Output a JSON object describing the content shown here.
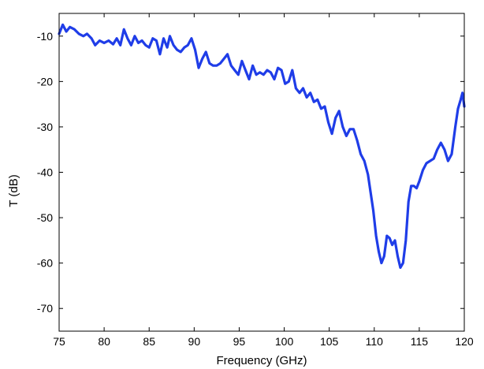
{
  "chart_data": {
    "type": "line",
    "title": "",
    "xlabel": "Frequency (GHz)",
    "ylabel": "T (dB)",
    "xlim": [
      75,
      120
    ],
    "ylim": [
      -75,
      -5
    ],
    "xticks": [
      75,
      80,
      85,
      90,
      95,
      100,
      105,
      110,
      115,
      120
    ],
    "yticks": [
      -10,
      -20,
      -30,
      -40,
      -50,
      -60,
      -70
    ],
    "grid": false,
    "legend": "none",
    "series": [
      {
        "color": "#1f3de8",
        "x": [
          75,
          75.4,
          75.8,
          76.2,
          76.7,
          77.2,
          77.7,
          78.1,
          78.6,
          79.0,
          79.5,
          80.0,
          80.5,
          81.0,
          81.4,
          81.8,
          82.2,
          82.6,
          83.0,
          83.4,
          83.8,
          84.2,
          84.6,
          85.0,
          85.4,
          85.8,
          86.2,
          86.6,
          87.0,
          87.3,
          87.7,
          88.1,
          88.5,
          88.9,
          89.3,
          89.7,
          90.1,
          90.5,
          90.9,
          91.3,
          91.7,
          92.1,
          92.5,
          92.9,
          93.3,
          93.7,
          94.1,
          94.5,
          94.9,
          95.3,
          95.7,
          96.1,
          96.5,
          96.9,
          97.3,
          97.7,
          98.1,
          98.5,
          98.9,
          99.3,
          99.7,
          100.1,
          100.5,
          100.9,
          101.3,
          101.7,
          102.1,
          102.5,
          102.9,
          103.3,
          103.7,
          104.1,
          104.5,
          104.9,
          105.3,
          105.7,
          106.1,
          106.5,
          106.9,
          107.3,
          107.7,
          108.1,
          108.5,
          108.9,
          109.3,
          109.6,
          109.9,
          110.2,
          110.5,
          110.8,
          111.1,
          111.4,
          111.7,
          112.0,
          112.3,
          112.6,
          112.9,
          113.2,
          113.5,
          113.8,
          114.1,
          114.4,
          114.7,
          115.0,
          115.4,
          115.8,
          116.2,
          116.6,
          117.0,
          117.4,
          117.8,
          118.2,
          118.6,
          119.0,
          119.3,
          119.6,
          119.8,
          120.0
        ],
        "y": [
          -9.5,
          -7.5,
          -9.0,
          -8.0,
          -8.5,
          -9.5,
          -10.0,
          -9.5,
          -10.5,
          -12.0,
          -11.0,
          -11.5,
          -11.0,
          -11.8,
          -10.5,
          -12.0,
          -8.5,
          -10.5,
          -12.0,
          -10.0,
          -11.5,
          -11.0,
          -12.0,
          -12.5,
          -10.5,
          -11.0,
          -14.0,
          -10.5,
          -12.5,
          -10.0,
          -12.0,
          -13.0,
          -13.5,
          -12.5,
          -12.0,
          -10.5,
          -13.0,
          -17.0,
          -15.0,
          -13.5,
          -16.0,
          -16.5,
          -16.5,
          -16.0,
          -15.0,
          -14.0,
          -16.5,
          -17.5,
          -18.5,
          -15.5,
          -17.5,
          -19.5,
          -16.5,
          -18.5,
          -18.0,
          -18.5,
          -17.5,
          -18.0,
          -19.5,
          -17.0,
          -17.5,
          -20.5,
          -20.0,
          -17.5,
          -21.5,
          -22.5,
          -21.5,
          -23.5,
          -22.5,
          -24.5,
          -24.0,
          -26.0,
          -25.5,
          -29.0,
          -31.5,
          -28.0,
          -26.5,
          -30.0,
          -32.0,
          -30.5,
          -30.5,
          -33.0,
          -36.0,
          -37.5,
          -40.5,
          -44.5,
          -48.5,
          -54.0,
          -57.5,
          -60.0,
          -58.5,
          -54.0,
          -54.5,
          -56.0,
          -55.0,
          -58.5,
          -61.0,
          -60.0,
          -55.0,
          -46.5,
          -43.0,
          -43.0,
          -43.5,
          -42.0,
          -39.5,
          -38.0,
          -37.5,
          -37.0,
          -35.0,
          -33.5,
          -35.0,
          -37.5,
          -36.0,
          -30.0,
          -26.0,
          -24.0,
          -22.5,
          -25.5
        ]
      }
    ]
  }
}
